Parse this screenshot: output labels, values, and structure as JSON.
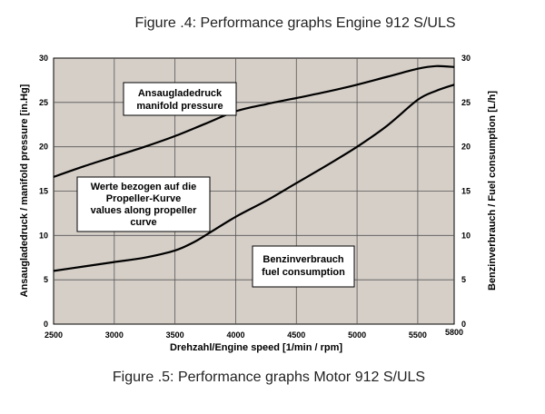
{
  "figure_titles": {
    "top": "Figure .4: Performance graphs Engine 912 S/ULS",
    "bottom": "Figure .5: Performance graphs Motor 912 S/ULS"
  },
  "chart_data": {
    "type": "line",
    "x_label": "Drehzahl/Engine speed [1/min / rpm]",
    "y_left_label": "Ansaugladedruck / manifold pressure [in.Hg]",
    "y_right_label": "Benzinverbrauch / Fuel consumption [L/h]",
    "xlim": [
      2500,
      5800
    ],
    "ylim": [
      0,
      30
    ],
    "x_ticks": [
      "2500",
      "3000",
      "3500",
      "4000",
      "4500",
      "5000",
      "5500",
      "5800"
    ],
    "x_tick_values": [
      2500,
      3000,
      3500,
      4000,
      4500,
      5000,
      5500,
      5800
    ],
    "y_ticks_left": [
      "0",
      "5",
      "10",
      "15",
      "20",
      "25",
      "30"
    ],
    "y_ticks_right": [
      "0",
      "5",
      "10",
      "15",
      "20",
      "25",
      "30"
    ],
    "y_tick_values": [
      0,
      5,
      10,
      15,
      20,
      25,
      30
    ],
    "grid": true,
    "background_color": "#d6cfc8",
    "line_color": "#000000",
    "series": [
      {
        "name": "manifold pressure",
        "axis": "left",
        "x": [
          2500,
          2750,
          3000,
          3250,
          3500,
          3750,
          4000,
          4250,
          4500,
          4750,
          5000,
          5250,
          5500,
          5650,
          5800
        ],
        "y": [
          16.6,
          17.8,
          18.9,
          20.0,
          21.2,
          22.6,
          24.0,
          24.8,
          25.5,
          26.2,
          27.0,
          27.9,
          28.8,
          29.1,
          29.0
        ]
      },
      {
        "name": "fuel consumption",
        "axis": "right",
        "x": [
          2500,
          2750,
          3000,
          3250,
          3500,
          3650,
          3750,
          4000,
          4250,
          4500,
          4750,
          5000,
          5250,
          5500,
          5650,
          5800
        ],
        "y": [
          6.0,
          6.5,
          7.0,
          7.5,
          8.3,
          9.2,
          10.0,
          12.1,
          13.9,
          15.9,
          17.9,
          20.0,
          22.4,
          25.3,
          26.3,
          27.0
        ]
      }
    ],
    "annotations": [
      {
        "id": "manifold",
        "lines": [
          "Ansaugladedruck",
          "manifold pressure"
        ]
      },
      {
        "id": "propeller",
        "lines": [
          "Werte bezogen auf die",
          "Propeller-Kurve",
          "values along propeller",
          "curve"
        ]
      },
      {
        "id": "fuel",
        "lines": [
          "Benzinverbrauch",
          "fuel consumption"
        ]
      }
    ]
  }
}
